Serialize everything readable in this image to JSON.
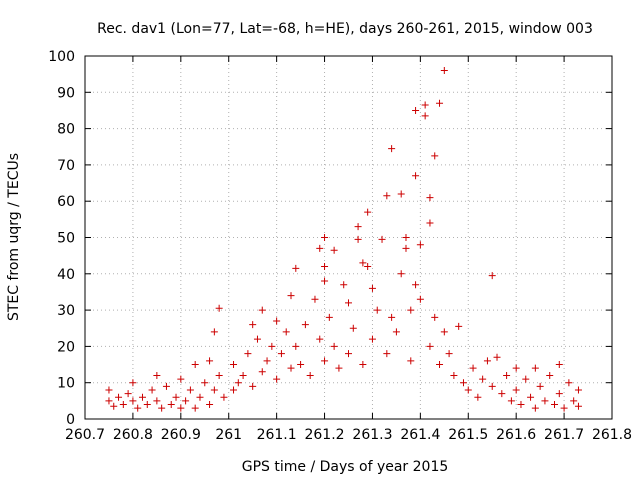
{
  "chart_data": {
    "type": "scatter",
    "title": "Rec. dav1 (Lon=77, Lat=-68, h=HE), days 260-261, 2015, window 003",
    "xlabel": "GPS time / Days of year 2015",
    "ylabel": "STEC from uqrg / TECUs",
    "xlim": [
      260.7,
      261.8
    ],
    "ylim": [
      0,
      100
    ],
    "x_ticks": [
      260.7,
      260.8,
      260.9,
      261.0,
      261.1,
      261.2,
      261.3,
      261.4,
      261.5,
      261.6,
      261.7,
      261.8
    ],
    "x_tick_labels": [
      "260.7",
      "260.8",
      "260.9",
      "261",
      "261.1",
      "261.2",
      "261.3",
      "261.4",
      "261.5",
      "261.6",
      "261.7",
      "261.8"
    ],
    "y_ticks": [
      0,
      10,
      20,
      30,
      40,
      50,
      60,
      70,
      80,
      90,
      100
    ],
    "y_tick_labels": [
      "0",
      "10",
      "20",
      "30",
      "40",
      "50",
      "60",
      "70",
      "80",
      "90",
      "100"
    ],
    "grid": true,
    "marker": "+",
    "color": "#cc0000",
    "series": [
      {
        "name": "STEC",
        "points": [
          [
            260.75,
            8
          ],
          [
            260.75,
            5
          ],
          [
            260.76,
            3.5
          ],
          [
            260.77,
            6
          ],
          [
            260.78,
            4
          ],
          [
            260.79,
            7
          ],
          [
            260.8,
            10
          ],
          [
            260.8,
            5
          ],
          [
            260.81,
            3
          ],
          [
            260.82,
            6
          ],
          [
            260.83,
            4
          ],
          [
            260.84,
            8
          ],
          [
            260.85,
            12
          ],
          [
            260.85,
            5
          ],
          [
            260.86,
            3
          ],
          [
            260.87,
            9
          ],
          [
            260.88,
            4
          ],
          [
            260.89,
            6
          ],
          [
            260.9,
            11
          ],
          [
            260.9,
            3
          ],
          [
            260.91,
            5
          ],
          [
            260.92,
            8
          ],
          [
            260.93,
            15
          ],
          [
            260.93,
            3
          ],
          [
            260.94,
            6
          ],
          [
            260.95,
            10
          ],
          [
            260.96,
            16
          ],
          [
            260.96,
            4
          ],
          [
            260.97,
            24
          ],
          [
            260.97,
            8
          ],
          [
            260.98,
            30.5
          ],
          [
            260.98,
            12
          ],
          [
            260.99,
            6
          ],
          [
            261.01,
            15
          ],
          [
            261.01,
            8
          ],
          [
            261.02,
            10
          ],
          [
            261.03,
            12
          ],
          [
            261.04,
            18
          ],
          [
            261.05,
            26
          ],
          [
            261.05,
            9
          ],
          [
            261.06,
            22
          ],
          [
            261.07,
            30
          ],
          [
            261.07,
            13
          ],
          [
            261.08,
            16
          ],
          [
            261.09,
            20
          ],
          [
            261.1,
            27
          ],
          [
            261.1,
            11
          ],
          [
            261.11,
            18
          ],
          [
            261.12,
            24
          ],
          [
            261.13,
            34
          ],
          [
            261.13,
            14
          ],
          [
            261.14,
            41.5
          ],
          [
            261.14,
            20
          ],
          [
            261.15,
            15
          ],
          [
            261.16,
            26
          ],
          [
            261.17,
            12
          ],
          [
            261.18,
            33
          ],
          [
            261.19,
            47
          ],
          [
            261.19,
            22
          ],
          [
            261.2,
            50
          ],
          [
            261.2,
            42
          ],
          [
            261.2,
            38
          ],
          [
            261.2,
            16
          ],
          [
            261.21,
            28
          ],
          [
            261.22,
            46.5
          ],
          [
            261.22,
            20
          ],
          [
            261.23,
            14
          ],
          [
            261.24,
            37
          ],
          [
            261.25,
            32
          ],
          [
            261.25,
            18
          ],
          [
            261.26,
            25
          ],
          [
            261.27,
            53
          ],
          [
            261.27,
            49.5
          ],
          [
            261.28,
            43
          ],
          [
            261.28,
            15
          ],
          [
            261.29,
            57
          ],
          [
            261.29,
            42
          ],
          [
            261.3,
            36
          ],
          [
            261.3,
            22
          ],
          [
            261.31,
            30
          ],
          [
            261.32,
            49.5
          ],
          [
            261.33,
            61.5
          ],
          [
            261.33,
            18
          ],
          [
            261.34,
            74.5
          ],
          [
            261.34,
            28
          ],
          [
            261.35,
            24
          ],
          [
            261.36,
            62
          ],
          [
            261.36,
            40
          ],
          [
            261.37,
            47
          ],
          [
            261.37,
            50
          ],
          [
            261.38,
            30
          ],
          [
            261.38,
            16
          ],
          [
            261.39,
            37
          ],
          [
            261.39,
            85
          ],
          [
            261.39,
            67
          ],
          [
            261.4,
            48
          ],
          [
            261.4,
            33
          ],
          [
            261.41,
            86.5
          ],
          [
            261.41,
            83.5
          ],
          [
            261.42,
            61
          ],
          [
            261.42,
            54
          ],
          [
            261.42,
            20
          ],
          [
            261.43,
            72.5
          ],
          [
            261.43,
            28
          ],
          [
            261.44,
            87
          ],
          [
            261.44,
            15
          ],
          [
            261.45,
            24
          ],
          [
            261.45,
            96
          ],
          [
            261.46,
            18
          ],
          [
            261.47,
            12
          ],
          [
            261.48,
            25.5
          ],
          [
            261.49,
            10
          ],
          [
            261.5,
            8
          ],
          [
            261.51,
            14
          ],
          [
            261.52,
            6
          ],
          [
            261.53,
            11
          ],
          [
            261.54,
            16
          ],
          [
            261.55,
            39.5
          ],
          [
            261.55,
            9
          ],
          [
            261.56,
            17
          ],
          [
            261.57,
            7
          ],
          [
            261.58,
            12
          ],
          [
            261.59,
            5
          ],
          [
            261.6,
            14
          ],
          [
            261.6,
            8
          ],
          [
            261.61,
            4
          ],
          [
            261.62,
            11
          ],
          [
            261.63,
            6
          ],
          [
            261.64,
            14
          ],
          [
            261.64,
            3
          ],
          [
            261.65,
            9
          ],
          [
            261.66,
            5
          ],
          [
            261.67,
            12
          ],
          [
            261.68,
            4
          ],
          [
            261.69,
            15
          ],
          [
            261.69,
            7
          ],
          [
            261.7,
            3
          ],
          [
            261.71,
            10
          ],
          [
            261.72,
            5
          ],
          [
            261.73,
            8
          ],
          [
            261.73,
            3.5
          ]
        ]
      }
    ]
  }
}
